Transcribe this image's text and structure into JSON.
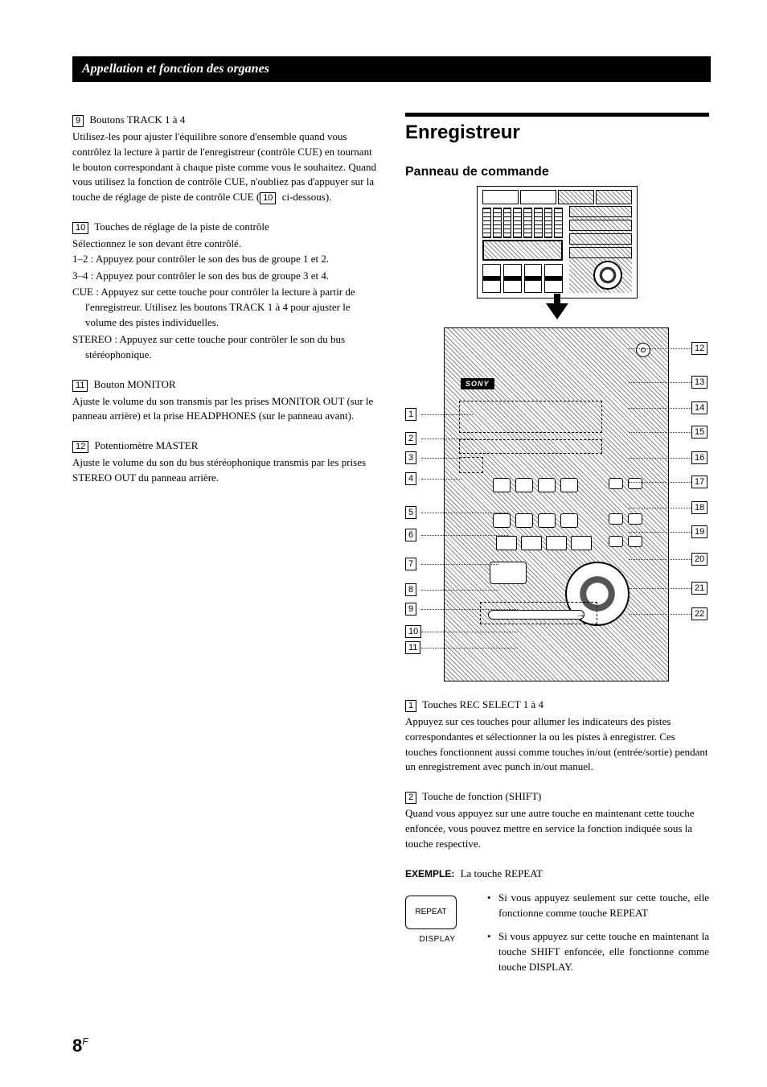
{
  "header": {
    "title": "Appellation et fonction des organes"
  },
  "left": {
    "item9": {
      "num": "9",
      "title": "Boutons TRACK 1 à 4",
      "body": "Utilisez-les pour ajuster l'équilibre sonore d'ensemble quand vous contrôlez la lecture à partir de l'enregistreur (contrôle CUE) en tournant le bouton correspondant à chaque piste comme vous le souhaitez. Quand vous utilisez la fonction de contrôle CUE, n'oubliez pas d'appuyer sur la touche de réglage de piste de contrôle CUE (",
      "ref": "10",
      "body2": " ci-dessous)."
    },
    "item10": {
      "num": "10",
      "title": "Touches de réglage de la piste de contrôle",
      "lead": "Sélectionnez le son devant être contrôlé.",
      "l1": "1–2 : Appuyez pour contrôler le son des bus de groupe 1 et 2.",
      "l2": "3–4 : Appuyez pour contrôler le son des bus de groupe 3 et 4.",
      "l3": "CUE : Appuyez sur cette touche pour contrôler la lecture à partir de l'enregistreur. Utilisez les boutons TRACK 1 à 4 pour ajuster le volume des pistes individuelles.",
      "l4": "STEREO : Appuyez sur cette touche pour contrôler le son du bus stéréophonique."
    },
    "item11": {
      "num": "11",
      "title": "Bouton MONITOR",
      "body": "Ajuste le volume du son transmis par les prises MONITOR OUT (sur le panneau arrière) et la prise HEADPHONES (sur le panneau avant)."
    },
    "item12": {
      "num": "12",
      "title": "Potentiomètre MASTER",
      "body": "Ajuste le volume du son du bus stéréophonique transmis par les prises STEREO OUT du panneau arrière."
    }
  },
  "right": {
    "h1": "Enregistreur",
    "h2": "Panneau de commande",
    "sony": "SONY",
    "callouts_left": [
      "1",
      "2",
      "3",
      "4",
      "5",
      "6",
      "7",
      "8",
      "9",
      "10",
      "11"
    ],
    "callouts_right": [
      "12",
      "13",
      "14",
      "15",
      "16",
      "17",
      "18",
      "19",
      "20",
      "21",
      "22"
    ],
    "item1": {
      "num": "1",
      "title": "Touches REC SELECT 1 à 4",
      "body": "Appuyez sur ces touches pour allumer les indicateurs des pistes correspondantes et sélectionner la ou les pistes à enregistrer. Ces touches fonctionnent aussi comme touches in/out (entrée/sortie) pendant un enregistrement avec punch in/out manuel."
    },
    "item2": {
      "num": "2",
      "title": "Touche de fonction (SHIFT)",
      "body": "Quand vous appuyez sur une autre touche en maintenant cette touche enfoncée, vous pouvez mettre en service la fonction indiquée sous la touche respective."
    },
    "example_label": "EXEMPLE:",
    "example_text": "La touche REPEAT",
    "repeat_btn": "REPEAT",
    "repeat_caption": "DISPLAY",
    "bullet1": "Si vous appuyez seulement sur cette touche, elle fonctionne comme touche REPEAT",
    "bullet2": "Si vous appuyez sur cette touche en maintenant la touche SHIFT enfoncée, elle fonctionne comme touche DISPLAY."
  },
  "page": {
    "num": "8",
    "suffix": "F"
  }
}
